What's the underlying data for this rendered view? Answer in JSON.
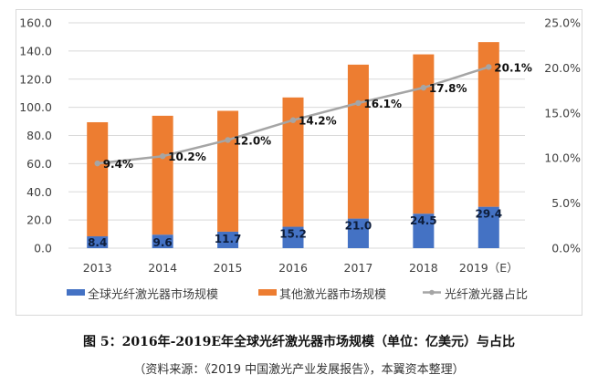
{
  "chart_data": {
    "type": "bar",
    "stacked": true,
    "categories": [
      "2013",
      "2014",
      "2015",
      "2016",
      "2017",
      "2018",
      "2019（E）"
    ],
    "series": [
      {
        "name": "全球光纤激光器市场规模",
        "type": "bar",
        "axis": "left",
        "color": "#4472C4",
        "values": [
          8.4,
          9.6,
          11.7,
          15.2,
          21.0,
          24.5,
          29.4
        ],
        "labels": [
          "8.4",
          "9.6",
          "11.7",
          "15.2",
          "21.0",
          "24.5",
          "29.4"
        ]
      },
      {
        "name": "其他激光器市场规模",
        "type": "bar",
        "axis": "left",
        "color": "#ED7D31",
        "values": [
          81.0,
          84.4,
          85.8,
          91.8,
          109.3,
          113.1,
          116.9
        ]
      },
      {
        "name": "光纤激光器占比",
        "type": "line",
        "axis": "right",
        "color": "#A5A5A5",
        "values": [
          9.4,
          10.2,
          12.0,
          14.2,
          16.1,
          17.8,
          20.1
        ],
        "labels": [
          "9.4%",
          "10.2%",
          "12.0%",
          "14.2%",
          "16.1%",
          "17.8%",
          "20.1%"
        ]
      }
    ],
    "ylim": [
      0,
      160
    ],
    "y2lim": [
      0,
      25
    ],
    "yticks": [
      "0.0",
      "20.0",
      "40.0",
      "60.0",
      "80.0",
      "100.0",
      "120.0",
      "140.0",
      "160.0"
    ],
    "y2ticks": [
      "0.0%",
      "5.0%",
      "10.0%",
      "15.0%",
      "20.0%",
      "25.0%"
    ],
    "grid": true,
    "legend": "bottom",
    "title": "",
    "xlabel": "",
    "ylabel": ""
  },
  "caption": {
    "title": "图 5：2016年-2019E年全球光纤激光器市场规模（单位：亿美元）与占比",
    "source": "（资料来源：《2019 中国激光产业发展报告》，本翼资本整理）"
  }
}
